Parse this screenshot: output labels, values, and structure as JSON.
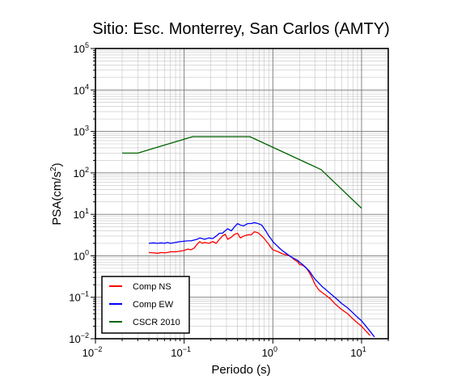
{
  "chart_data": {
    "type": "line",
    "title": "Sitio: Esc. Monterrey, San Carlos (AMTY)",
    "xlabel": "Periodo (s)",
    "ylabel_main": "PSA(cm/s",
    "ylabel_sup": "2",
    "ylabel_tail": ")",
    "x_scale": "log",
    "y_scale": "log",
    "xlim": [
      0.01,
      20
    ],
    "ylim": [
      0.01,
      100000
    ],
    "grid": true,
    "legend_position": "bottom-left",
    "x_ticks": [
      {
        "base": "10",
        "exp": "−2",
        "value": 0.01
      },
      {
        "base": "10",
        "exp": "−1",
        "value": 0.1
      },
      {
        "base": "10",
        "exp": "0",
        "value": 1
      },
      {
        "base": "10",
        "exp": "1",
        "value": 10
      }
    ],
    "y_ticks": [
      {
        "base": "10",
        "exp": "−2",
        "value": 0.01
      },
      {
        "base": "10",
        "exp": "−1",
        "value": 0.1
      },
      {
        "base": "10",
        "exp": "0",
        "value": 1
      },
      {
        "base": "10",
        "exp": "1",
        "value": 10
      },
      {
        "base": "10",
        "exp": "2",
        "value": 100
      },
      {
        "base": "10",
        "exp": "3",
        "value": 1000
      },
      {
        "base": "10",
        "exp": "4",
        "value": 10000
      },
      {
        "base": "10",
        "exp": "5",
        "value": 100000
      }
    ],
    "series": [
      {
        "name": "Comp NS",
        "color": "#ff0000",
        "points": [
          [
            0.04,
            1.2
          ],
          [
            0.045,
            1.18
          ],
          [
            0.05,
            1.15
          ],
          [
            0.055,
            1.2
          ],
          [
            0.06,
            1.18
          ],
          [
            0.065,
            1.2
          ],
          [
            0.07,
            1.25
          ],
          [
            0.08,
            1.25
          ],
          [
            0.09,
            1.3
          ],
          [
            0.1,
            1.35
          ],
          [
            0.11,
            1.45
          ],
          [
            0.12,
            1.4
          ],
          [
            0.13,
            1.55
          ],
          [
            0.14,
            1.9
          ],
          [
            0.15,
            2.2
          ],
          [
            0.16,
            2.0
          ],
          [
            0.17,
            2.1
          ],
          [
            0.19,
            2.0
          ],
          [
            0.21,
            2.2
          ],
          [
            0.23,
            2.0
          ],
          [
            0.25,
            2.5
          ],
          [
            0.27,
            3.0
          ],
          [
            0.29,
            3.3
          ],
          [
            0.31,
            2.5
          ],
          [
            0.34,
            2.8
          ],
          [
            0.37,
            3.3
          ],
          [
            0.4,
            3.5
          ],
          [
            0.43,
            2.7
          ],
          [
            0.47,
            3.0
          ],
          [
            0.52,
            3.2
          ],
          [
            0.57,
            3.2
          ],
          [
            0.62,
            3.8
          ],
          [
            0.68,
            3.6
          ],
          [
            0.75,
            3.0
          ],
          [
            0.8,
            2.6
          ],
          [
            0.85,
            2.2
          ],
          [
            0.9,
            1.9
          ],
          [
            0.95,
            1.6
          ],
          [
            1.0,
            1.4
          ],
          [
            1.1,
            1.3
          ],
          [
            1.2,
            1.2
          ],
          [
            1.3,
            1.1
          ],
          [
            1.45,
            1.05
          ],
          [
            1.6,
            0.95
          ],
          [
            1.75,
            0.8
          ],
          [
            1.9,
            0.72
          ],
          [
            2.0,
            0.62
          ],
          [
            2.2,
            0.58
          ],
          [
            2.4,
            0.5
          ],
          [
            2.6,
            0.38
          ],
          [
            2.8,
            0.28
          ],
          [
            3.0,
            0.2
          ],
          [
            3.3,
            0.15
          ],
          [
            3.6,
            0.13
          ],
          [
            4.0,
            0.11
          ],
          [
            4.5,
            0.09
          ],
          [
            5.0,
            0.07
          ],
          [
            6.0,
            0.05
          ],
          [
            7.0,
            0.04
          ],
          [
            8.0,
            0.03
          ],
          [
            9.0,
            0.024
          ],
          [
            10.0,
            0.02
          ],
          [
            11.0,
            0.016
          ],
          [
            12.5,
            0.012
          ]
        ]
      },
      {
        "name": "Comp EW",
        "color": "#0000ff",
        "points": [
          [
            0.04,
            2.0
          ],
          [
            0.045,
            2.05
          ],
          [
            0.05,
            2.0
          ],
          [
            0.055,
            2.05
          ],
          [
            0.06,
            2.0
          ],
          [
            0.065,
            2.1
          ],
          [
            0.07,
            2.0
          ],
          [
            0.08,
            2.1
          ],
          [
            0.09,
            2.2
          ],
          [
            0.1,
            2.25
          ],
          [
            0.11,
            2.3
          ],
          [
            0.12,
            2.3
          ],
          [
            0.13,
            2.4
          ],
          [
            0.14,
            2.5
          ],
          [
            0.15,
            2.7
          ],
          [
            0.16,
            2.6
          ],
          [
            0.17,
            2.5
          ],
          [
            0.19,
            2.7
          ],
          [
            0.21,
            2.6
          ],
          [
            0.23,
            3.0
          ],
          [
            0.25,
            3.5
          ],
          [
            0.27,
            3.5
          ],
          [
            0.29,
            4.0
          ],
          [
            0.31,
            4.5
          ],
          [
            0.34,
            4.0
          ],
          [
            0.37,
            5.0
          ],
          [
            0.4,
            6.0
          ],
          [
            0.43,
            5.5
          ],
          [
            0.47,
            5.3
          ],
          [
            0.52,
            6.0
          ],
          [
            0.57,
            6.0
          ],
          [
            0.62,
            6.3
          ],
          [
            0.68,
            6.0
          ],
          [
            0.75,
            5.5
          ],
          [
            0.8,
            4.5
          ],
          [
            0.85,
            3.7
          ],
          [
            0.9,
            3.0
          ],
          [
            0.95,
            2.6
          ],
          [
            1.0,
            2.2
          ],
          [
            1.1,
            1.8
          ],
          [
            1.2,
            1.5
          ],
          [
            1.3,
            1.3
          ],
          [
            1.45,
            1.1
          ],
          [
            1.6,
            0.95
          ],
          [
            1.75,
            0.85
          ],
          [
            1.9,
            0.78
          ],
          [
            2.0,
            0.7
          ],
          [
            2.2,
            0.6
          ],
          [
            2.4,
            0.5
          ],
          [
            2.6,
            0.42
          ],
          [
            2.8,
            0.33
          ],
          [
            3.0,
            0.27
          ],
          [
            3.3,
            0.22
          ],
          [
            3.6,
            0.18
          ],
          [
            4.0,
            0.15
          ],
          [
            4.5,
            0.12
          ],
          [
            5.0,
            0.1
          ],
          [
            6.0,
            0.07
          ],
          [
            7.0,
            0.055
          ],
          [
            8.0,
            0.042
          ],
          [
            9.0,
            0.033
          ],
          [
            10.0,
            0.027
          ],
          [
            11.0,
            0.021
          ],
          [
            12.5,
            0.015
          ],
          [
            14.0,
            0.011
          ]
        ]
      },
      {
        "name": "CSCR 2010",
        "color": "#006400",
        "points": [
          [
            0.02,
            300
          ],
          [
            0.03,
            300
          ],
          [
            0.125,
            750
          ],
          [
            0.55,
            750
          ],
          [
            3.5,
            120
          ],
          [
            10.0,
            14
          ]
        ]
      }
    ]
  }
}
